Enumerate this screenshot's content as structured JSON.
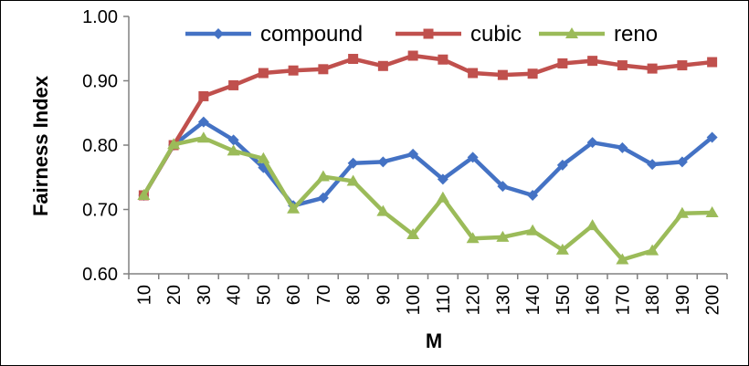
{
  "chart_data": {
    "type": "line",
    "title": "",
    "xlabel": "M",
    "ylabel": "Fairness Index",
    "ylim": [
      0.6,
      1.0
    ],
    "yticks": [
      "0.60",
      "0.70",
      "0.80",
      "0.90",
      "1.00"
    ],
    "grid": false,
    "legend_position": "top",
    "categories": [
      "10",
      "20",
      "30",
      "40",
      "50",
      "60",
      "70",
      "80",
      "90",
      "100",
      "110",
      "120",
      "130",
      "140",
      "150",
      "160",
      "170",
      "180",
      "190",
      "200"
    ],
    "series": [
      {
        "name": "compound",
        "color": "#4472C4",
        "marker": "diamond",
        "values": [
          0.722,
          0.8,
          0.836,
          0.808,
          0.765,
          0.706,
          0.718,
          0.772,
          0.774,
          0.786,
          0.747,
          0.781,
          0.736,
          0.722,
          0.769,
          0.804,
          0.796,
          0.77,
          0.774,
          0.812
        ]
      },
      {
        "name": "cubic",
        "color": "#C0504D",
        "marker": "square",
        "values": [
          0.722,
          0.8,
          0.876,
          0.893,
          0.912,
          0.916,
          0.918,
          0.934,
          0.923,
          0.939,
          0.933,
          0.912,
          0.909,
          0.911,
          0.927,
          0.931,
          0.924,
          0.919,
          0.924,
          0.929
        ]
      },
      {
        "name": "reno",
        "color": "#9BBB59",
        "marker": "triangle",
        "values": [
          0.722,
          0.801,
          0.811,
          0.791,
          0.779,
          0.701,
          0.751,
          0.744,
          0.697,
          0.661,
          0.718,
          0.655,
          0.657,
          0.667,
          0.637,
          0.675,
          0.622,
          0.636,
          0.694,
          0.695
        ]
      }
    ]
  }
}
